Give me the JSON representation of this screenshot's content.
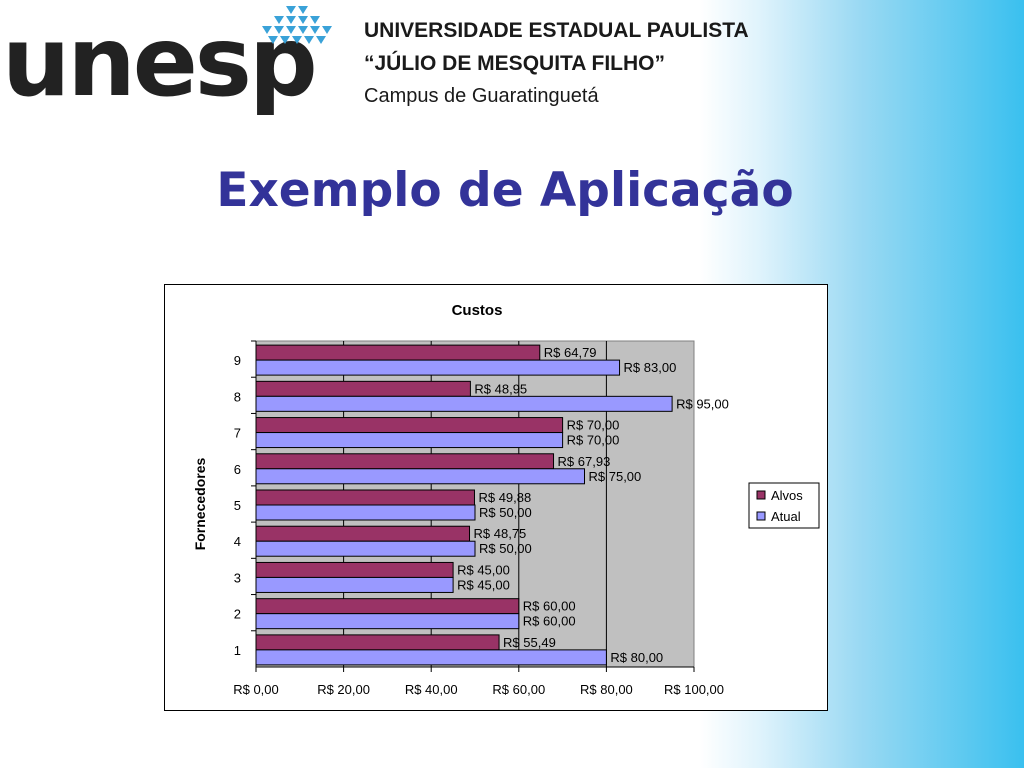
{
  "header": {
    "logo_text": "unesp",
    "university_line1": "UNIVERSIDADE ESTADUAL PAULISTA",
    "university_line2": "“JÚLIO DE MESQUITA FILHO”",
    "campus_line": "Campus de Guaratinguetá"
  },
  "slide": {
    "title": "Exemplo de Aplicação"
  },
  "colors": {
    "alvos": "#993366",
    "atual": "#9999ff",
    "plot_bg": "#c0c0c0",
    "title": "#333399"
  },
  "chart_data": {
    "type": "bar",
    "orientation": "horizontal",
    "title": "Custos",
    "xlabel": "",
    "ylabel": "Fornecedores",
    "categories": [
      "1",
      "2",
      "3",
      "4",
      "5",
      "6",
      "7",
      "8",
      "9"
    ],
    "xlim": [
      0,
      100
    ],
    "x_ticks": [
      "R$ 0,00",
      "R$ 20,00",
      "R$ 40,00",
      "R$ 60,00",
      "R$ 80,00",
      "R$ 100,00"
    ],
    "grid": "vertical",
    "legend_position": "right",
    "series": [
      {
        "name": "Alvos",
        "values": [
          55.49,
          60,
          45,
          48.75,
          49.88,
          67.93,
          70,
          48.95,
          64.79
        ],
        "labels": [
          "R$ 55,49",
          "R$ 60,00",
          "R$ 45,00",
          "R$ 48,75",
          "R$ 49,88",
          "R$ 67,93",
          "R$ 70,00",
          "R$ 48,95",
          "R$ 64,79"
        ]
      },
      {
        "name": "Atual",
        "values": [
          80,
          60,
          45,
          50,
          50,
          75,
          70,
          95,
          83
        ],
        "labels": [
          "R$ 80,00",
          "R$ 60,00",
          "R$ 45,00",
          "R$ 50,00",
          "R$ 50,00",
          "R$ 75,00",
          "R$ 70,00",
          "R$ 95,00",
          "R$ 83,00"
        ]
      }
    ]
  }
}
